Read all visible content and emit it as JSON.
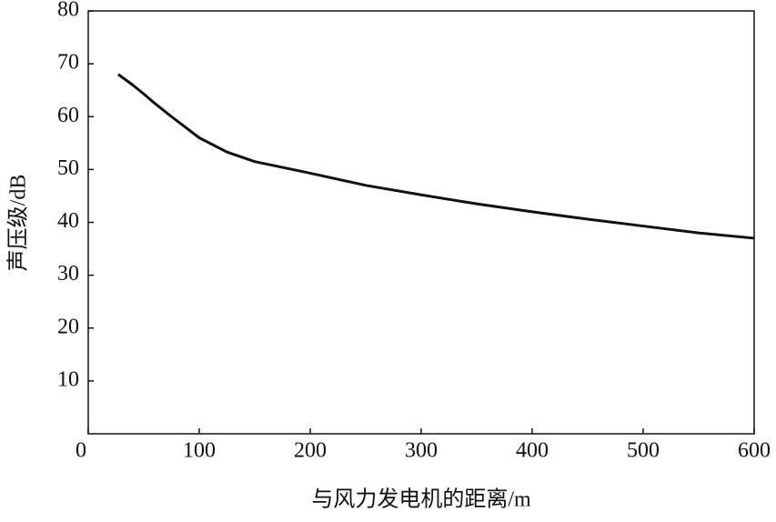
{
  "chart_data": {
    "type": "line",
    "x_label": "与风力发电机的距离/m",
    "y_label": "声压级/dB",
    "x": [
      27,
      40,
      50,
      60,
      75,
      100,
      125,
      150,
      200,
      250,
      300,
      350,
      400,
      450,
      500,
      550,
      600
    ],
    "series": [
      {
        "name": "声压级",
        "color": "#111111",
        "values": [
          68,
          66,
          64.3,
          62.5,
          60,
          56,
          53.3,
          51.5,
          49.3,
          47,
          45.2,
          43.5,
          42,
          40.6,
          39.3,
          38,
          37
        ]
      }
    ],
    "xlim": [
      0,
      600
    ],
    "xticks": [
      0,
      100,
      200,
      300,
      400,
      500,
      600
    ],
    "ylim": [
      0,
      80
    ],
    "yticks": [
      10,
      20,
      30,
      40,
      50,
      60,
      70,
      80
    ]
  }
}
